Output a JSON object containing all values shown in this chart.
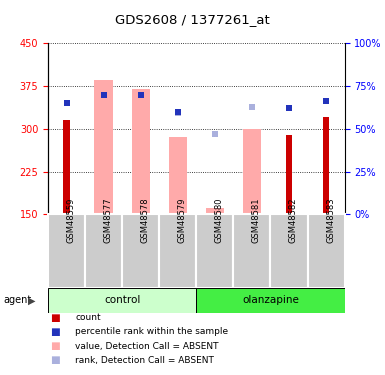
{
  "title": "GDS2608 / 1377261_at",
  "samples": [
    "GSM48559",
    "GSM48577",
    "GSM48578",
    "GSM48579",
    "GSM48580",
    "GSM48581",
    "GSM48582",
    "GSM48583"
  ],
  "groups": {
    "control": [
      "GSM48559",
      "GSM48577",
      "GSM48578",
      "GSM48579"
    ],
    "olanzapine": [
      "GSM48580",
      "GSM48581",
      "GSM48582",
      "GSM48583"
    ]
  },
  "ylim_left": [
    150,
    450
  ],
  "ylim_right": [
    0,
    100
  ],
  "yticks_left": [
    150,
    225,
    300,
    375,
    450
  ],
  "yticks_right": [
    0,
    25,
    50,
    75,
    100
  ],
  "red_bars": {
    "GSM48559": 315,
    "GSM48582": 290,
    "GSM48583": 320
  },
  "pink_bars": {
    "GSM48577": 385,
    "GSM48578": 370,
    "GSM48579": 285,
    "GSM48580": 162,
    "GSM48581": 300
  },
  "blue_squares": {
    "GSM48559": 65,
    "GSM48577": 70,
    "GSM48578": 70,
    "GSM48579": 60,
    "GSM48582": 62,
    "GSM48583": 66
  },
  "light_blue_squares": {
    "GSM48579": 59,
    "GSM48580": 47,
    "GSM48581": 63
  },
  "red_bar_width": 0.18,
  "pink_bar_width": 0.5,
  "red_color": "#cc0000",
  "pink_color": "#ffaaaa",
  "blue_color": "#2233bb",
  "light_blue_color": "#aab0dd",
  "control_light_color": "#ccffcc",
  "olanzapine_dark_color": "#44ee44",
  "label_bg_color": "#cccccc",
  "plot_bg_color": "#ffffff",
  "legend_items": [
    {
      "color": "#cc0000",
      "label": "count"
    },
    {
      "color": "#2233bb",
      "label": "percentile rank within the sample"
    },
    {
      "color": "#ffaaaa",
      "label": "value, Detection Call = ABSENT"
    },
    {
      "color": "#aab0dd",
      "label": "rank, Detection Call = ABSENT"
    }
  ]
}
